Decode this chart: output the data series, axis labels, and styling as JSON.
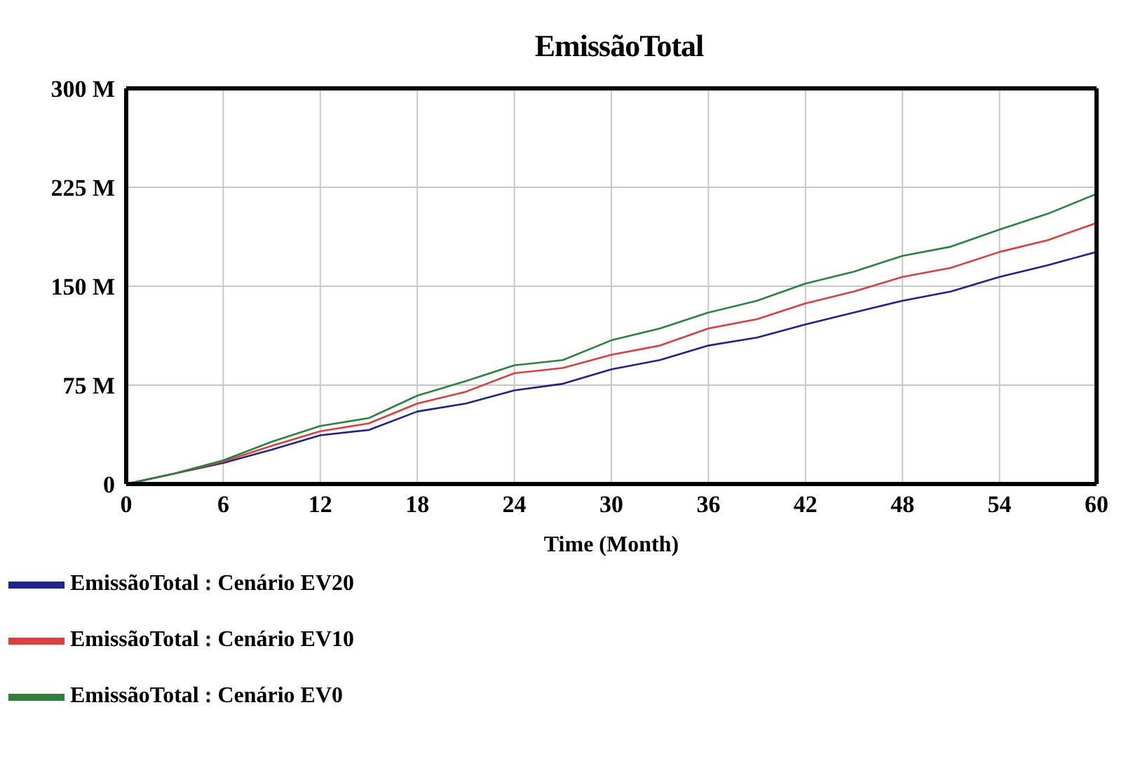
{
  "chart_data": {
    "type": "line",
    "title": "EmissãoTotal",
    "xlabel": "Time (Month)",
    "x": [
      0,
      3,
      6,
      9,
      12,
      15,
      18,
      21,
      24,
      27,
      30,
      33,
      36,
      39,
      42,
      45,
      48,
      51,
      54,
      57,
      60
    ],
    "series": [
      {
        "name": "EmissãoTotal : Cenário EV20",
        "color": "#22228c",
        "values": [
          0,
          8,
          16,
          26,
          37,
          41,
          55,
          61,
          71,
          76,
          87,
          94,
          105,
          111,
          121,
          130,
          139,
          146,
          157,
          166,
          176
        ]
      },
      {
        "name": "EmissãoTotal : Cenário EV10",
        "color": "#d94040",
        "values": [
          0,
          8,
          17,
          29,
          40,
          46,
          61,
          70,
          84,
          88,
          98,
          105,
          118,
          125,
          137,
          146,
          157,
          164,
          176,
          185,
          198
        ]
      },
      {
        "name": "EmissãoTotal : Cenário EV0",
        "color": "#2e8040",
        "values": [
          0,
          8,
          18,
          32,
          44,
          50,
          67,
          78,
          90,
          94,
          109,
          118,
          130,
          139,
          152,
          161,
          173,
          180,
          193,
          205,
          220
        ]
      }
    ],
    "xlim": [
      0,
      60
    ],
    "xticks": [
      0,
      6,
      12,
      18,
      24,
      30,
      36,
      42,
      48,
      54,
      60
    ],
    "ylim": [
      0,
      300
    ],
    "yticks": [
      {
        "value": 0,
        "label": "0"
      },
      {
        "value": 75,
        "label": "75 M"
      },
      {
        "value": 150,
        "label": "150 M"
      },
      {
        "value": 225,
        "label": "225 M"
      },
      {
        "value": 300,
        "label": "300 M"
      }
    ],
    "grid": true,
    "legend": "bottom",
    "marker": "none",
    "line_style": "solid"
  }
}
